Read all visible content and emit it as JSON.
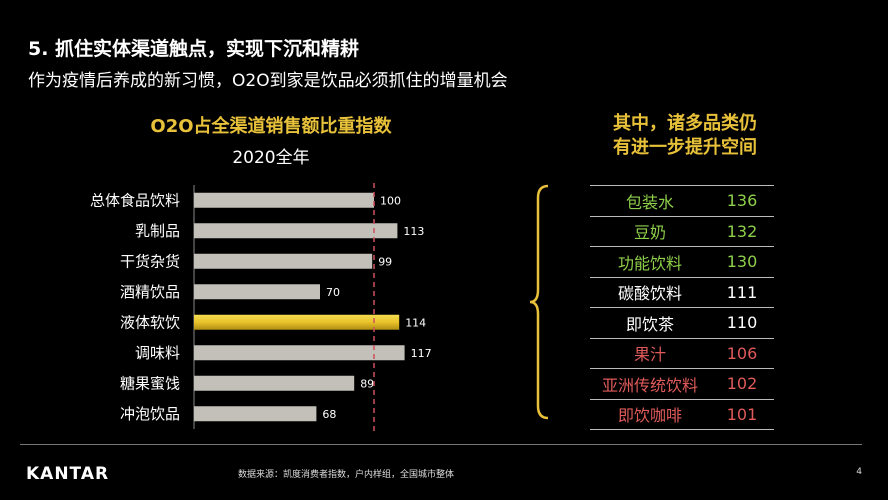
{
  "header": {
    "title": "5. 抓住实体渠道触点，实现下沉和精耕",
    "subtitle": "作为疫情后养成的新习惯，O2O到家是饮品必须抓住的增量机会"
  },
  "chart_data": {
    "type": "bar",
    "orientation": "horizontal",
    "title": "O2O占全渠道销售额比重指数",
    "subtitle": "2020全年",
    "categories": [
      "总体食品饮料",
      "乳制品",
      "干货杂货",
      "酒精饮品",
      "液体软饮",
      "调味料",
      "糖果蜜饯",
      "冲泡饮品"
    ],
    "values": [
      100,
      113,
      99,
      70,
      114,
      117,
      89,
      68
    ],
    "highlight": "液体软饮",
    "reference_line": 100,
    "xlim": [
      0,
      140
    ],
    "colors": {
      "bar": "#c2c0b8",
      "highlight": "#e8c32a",
      "reference": "#d0505a"
    }
  },
  "right_panel": {
    "title_line1": "其中，诸多品类仍",
    "title_line2": "有进一步提升空间",
    "rows": [
      {
        "name": "包装水",
        "value": "136",
        "color": "#8ed04a"
      },
      {
        "name": "豆奶",
        "value": "132",
        "color": "#8ed04a"
      },
      {
        "name": "功能饮料",
        "value": "130",
        "color": "#8ed04a"
      },
      {
        "name": "碳酸饮料",
        "value": "111",
        "color": "#ffffff"
      },
      {
        "name": "即饮茶",
        "value": "110",
        "color": "#ffffff"
      },
      {
        "name": "果汁",
        "value": "106",
        "color": "#e05a5a"
      },
      {
        "name": "亚洲传统饮料",
        "value": "102",
        "color": "#e05a5a"
      },
      {
        "name": "即饮咖啡",
        "value": "101",
        "color": "#e05a5a"
      }
    ]
  },
  "footer": {
    "logo": "KANTAR",
    "source": "数据来源：凯度消费者指数，户内样组，全国城市整体",
    "page_number": "4"
  }
}
